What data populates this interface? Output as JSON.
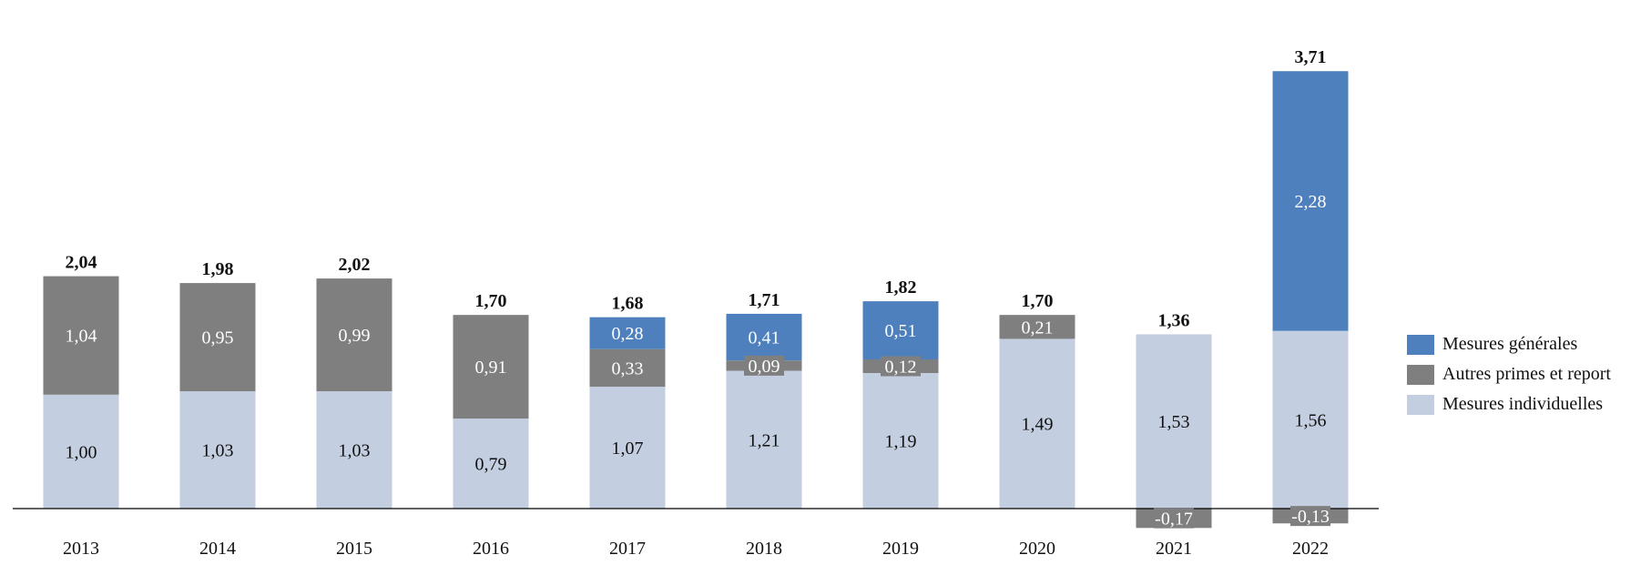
{
  "chart_data": {
    "type": "bar",
    "stacked": true,
    "categories": [
      "2013",
      "2014",
      "2015",
      "2016",
      "2017",
      "2018",
      "2019",
      "2020",
      "2021",
      "2022"
    ],
    "series": [
      {
        "name": "Mesures individuelles",
        "color": "#c3cee0",
        "values": [
          1.0,
          1.03,
          1.03,
          0.79,
          1.07,
          1.21,
          1.19,
          1.49,
          1.53,
          1.56
        ],
        "labels": [
          "1,00",
          "1,03",
          "1,03",
          "0,79",
          "1,07",
          "1,21",
          "1,19",
          "1,49",
          "1,53",
          "1,56"
        ]
      },
      {
        "name": "Autres primes et report",
        "color": "#7f7f7f",
        "values": [
          1.04,
          0.95,
          0.99,
          0.91,
          0.33,
          0.09,
          0.12,
          0.21,
          -0.17,
          -0.13
        ],
        "labels": [
          "1,04",
          "0,95",
          "0,99",
          "0,91",
          "0,33",
          "0,09",
          "0,12",
          "0,21",
          "-0,17",
          "-0,13"
        ]
      },
      {
        "name": "Mesures générales",
        "color": "#4d80bd",
        "values": [
          null,
          null,
          null,
          null,
          0.28,
          0.41,
          0.51,
          null,
          null,
          2.28
        ],
        "labels": [
          "",
          "",
          "",
          "",
          "0,28",
          "0,41",
          "0,51",
          "",
          "",
          "2,28"
        ]
      }
    ],
    "totals": [
      2.04,
      1.98,
      2.02,
      1.7,
      1.68,
      1.71,
      1.82,
      1.7,
      1.36,
      3.71
    ],
    "total_labels": [
      "2,04",
      "1,98",
      "2,02",
      "1,70",
      "1,68",
      "1,71",
      "1,82",
      "1,70",
      "1,36",
      "3,71"
    ],
    "ylim": [
      -0.17,
      3.71
    ],
    "grid": false,
    "legend_position": "right",
    "legend_order": [
      "Mesures générales",
      "Autres primes et report",
      "Mesures individuelles"
    ],
    "axis_color": "#000000",
    "label_dark_color": "#111111",
    "label_light_color": "#ffffff"
  }
}
